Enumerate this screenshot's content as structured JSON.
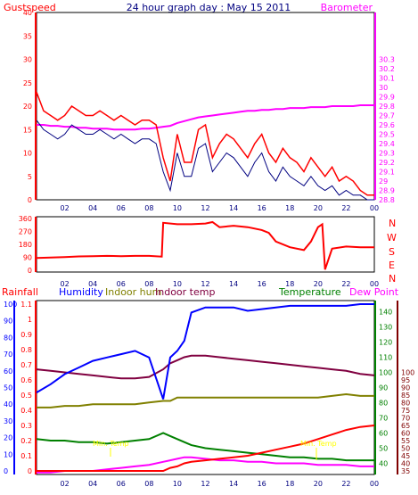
{
  "header": {
    "title": "24 hour graph day : May 15 2011",
    "left_label": "Gustspeed",
    "right_label": "Barometer"
  },
  "colors": {
    "gust": "#ff0000",
    "wind": "#000080",
    "barometer": "#ff00ff",
    "direction": "#ff0000",
    "rain": "#ff0000",
    "humidity": "#0000ff",
    "indoor_hum": "#808000",
    "indoor_temp": "#800040",
    "temperature": "#008000",
    "dewpoint": "#ff00ff",
    "axis_left": "#ff0000",
    "axis_right": "#ff00ff",
    "hum_axis": "#0000ff",
    "temp_axis": "#008000",
    "rain_axis": "#800000"
  },
  "x_ticks": [
    "02",
    "04",
    "06",
    "08",
    "10",
    "12",
    "14",
    "16",
    "18",
    "20",
    "22",
    "00"
  ],
  "chart_data": [
    {
      "type": "line",
      "name_hint": "wind",
      "title": "24 hour graph day : May 15 2011",
      "ylabel": "Gustspeed",
      "y2label": "Barometer",
      "ylim": [
        0,
        40
      ],
      "y2lim": [
        28.8,
        30.8
      ],
      "yticks": [
        0,
        5,
        10,
        15,
        20,
        25,
        30,
        35,
        40
      ],
      "y2ticks": [
        "28.8",
        "28.9",
        "29",
        "29.1",
        "29.2",
        "29.3",
        "29.4",
        "29.5",
        "29.6",
        "29.7",
        "29.8",
        "29.9",
        "30",
        "30.1",
        "30.2",
        "30.3"
      ],
      "x": [
        0,
        0.5,
        1,
        1.5,
        2,
        2.5,
        3,
        3.5,
        4,
        4.5,
        5,
        5.5,
        6,
        6.5,
        7,
        7.5,
        8,
        8.5,
        9,
        9.5,
        10,
        10.5,
        11,
        11.5,
        12,
        12.5,
        13,
        13.5,
        14,
        14.5,
        15,
        15.5,
        16,
        16.5,
        17,
        17.5,
        18,
        18.5,
        19,
        19.5,
        20,
        20.5,
        21,
        21.5,
        22,
        22.5,
        23,
        23.5,
        24
      ],
      "series": [
        {
          "name": "Gustspeed",
          "values": [
            23,
            19,
            18,
            17,
            18,
            20,
            19,
            18,
            18,
            19,
            18,
            17,
            18,
            17,
            16,
            17,
            17,
            16,
            9,
            4,
            14,
            8,
            8,
            15,
            16,
            9,
            12,
            14,
            13,
            11,
            9,
            12,
            14,
            10,
            8,
            11,
            9,
            8,
            6,
            9,
            7,
            5,
            7,
            4,
            5,
            4,
            2,
            1,
            1
          ]
        },
        {
          "name": "Wind",
          "values": [
            17,
            15,
            14,
            13,
            14,
            16,
            15,
            14,
            14,
            15,
            14,
            13,
            14,
            13,
            12,
            13,
            13,
            12,
            6,
            2,
            10,
            5,
            5,
            11,
            12,
            6,
            8,
            10,
            9,
            7,
            5,
            8,
            10,
            6,
            4,
            7,
            5,
            4,
            3,
            5,
            3,
            2,
            3,
            1,
            2,
            1,
            1,
            0,
            0
          ]
        },
        {
          "name": "Barometer",
          "values": [
            29.6,
            29.6,
            29.59,
            29.59,
            29.58,
            29.58,
            29.57,
            29.57,
            29.56,
            29.56,
            29.56,
            29.55,
            29.55,
            29.55,
            29.55,
            29.56,
            29.56,
            29.57,
            29.58,
            29.59,
            29.62,
            29.64,
            29.66,
            29.68,
            29.69,
            29.7,
            29.71,
            29.72,
            29.73,
            29.74,
            29.75,
            29.75,
            29.76,
            29.76,
            29.77,
            29.77,
            29.78,
            29.78,
            29.78,
            29.79,
            29.79,
            29.79,
            29.8,
            29.8,
            29.8,
            29.8,
            29.81,
            29.81,
            29.81
          ]
        }
      ]
    },
    {
      "type": "line",
      "name_hint": "direction",
      "yticks": [
        0,
        90,
        180,
        270,
        360
      ],
      "ylim": [
        0,
        360
      ],
      "compass": [
        "N",
        "W",
        "S",
        "E",
        "N"
      ],
      "x": [
        0,
        1,
        2,
        3,
        4,
        5,
        6,
        7,
        8,
        8.9,
        9.0,
        10,
        11,
        12,
        12.5,
        13,
        14,
        15,
        16,
        16.5,
        17,
        18,
        19,
        19.5,
        20,
        20.3,
        20.5,
        21,
        22,
        23,
        24
      ],
      "values": [
        85,
        88,
        92,
        96,
        98,
        100,
        98,
        100,
        100,
        95,
        330,
        320,
        320,
        325,
        335,
        300,
        310,
        300,
        280,
        260,
        200,
        160,
        140,
        200,
        300,
        320,
        5,
        150,
        165,
        160,
        160
      ]
    },
    {
      "type": "line",
      "name_hint": "temp",
      "labels": [
        "Rainfall",
        "Humidity",
        "Indoor hum",
        "Indoor temp",
        "Temperature",
        "Dew Point"
      ],
      "rain_ticks": [
        "0",
        "0.1",
        "0.2",
        "0.3",
        "0.4",
        "0.5",
        "0.6",
        "0.7",
        "0.8",
        "0.9",
        "1",
        "1.1"
      ],
      "hum_ticks": [
        0,
        10,
        20,
        30,
        40,
        50,
        60,
        70,
        80,
        90,
        100
      ],
      "temp_ticks": [
        40,
        50,
        60,
        70,
        80,
        90,
        100,
        110,
        120,
        130,
        140
      ],
      "temp2_ticks": [
        35,
        40,
        45,
        50,
        55,
        60,
        65,
        70,
        75,
        80,
        85,
        90,
        95,
        100
      ],
      "annotations": [
        "Min. Temp",
        "Min. Temp"
      ],
      "x": [
        0,
        1,
        2,
        3,
        4,
        5,
        6,
        7,
        8,
        9,
        9.5,
        10,
        10.5,
        11,
        12,
        13,
        14,
        15,
        16,
        17,
        18,
        19,
        20,
        21,
        22,
        23,
        24
      ],
      "series": [
        {
          "name": "Humidity",
          "values": [
            47,
            52,
            58,
            62,
            66,
            68,
            70,
            72,
            68,
            43,
            68,
            72,
            78,
            95,
            98,
            98,
            98,
            96,
            97,
            98,
            99,
            99,
            99,
            99,
            99,
            100,
            100
          ]
        },
        {
          "name": "Indoor hum",
          "values": [
            38,
            38,
            39,
            39,
            40,
            40,
            40,
            40,
            41,
            42,
            42,
            44,
            44,
            44,
            44,
            44,
            44,
            44,
            44,
            44,
            44,
            44,
            44,
            45,
            46,
            45,
            45
          ]
        },
        {
          "name": "Indoor temp",
          "values": [
            102,
            101,
            100,
            99,
            98,
            97,
            96,
            96,
            97,
            102,
            106,
            108,
            110,
            111,
            111,
            110,
            109,
            108,
            107,
            106,
            105,
            104,
            103,
            102,
            101,
            99,
            98
          ]
        },
        {
          "name": "Temperature",
          "values": [
            56,
            55,
            55,
            54,
            54,
            53,
            54,
            55,
            56,
            60,
            58,
            56,
            54,
            52,
            50,
            49,
            48,
            47,
            46,
            45,
            44,
            44,
            43,
            43,
            42,
            42,
            42
          ]
        },
        {
          "name": "Dew Point",
          "values": [
            34,
            34,
            35,
            35,
            35,
            36,
            37,
            38,
            39,
            41,
            42,
            43,
            44,
            44,
            43,
            42,
            42,
            41,
            41,
            40,
            40,
            40,
            39,
            39,
            39,
            38,
            38
          ]
        },
        {
          "name": "Rainfall",
          "values": [
            0,
            0,
            0,
            0,
            0,
            0,
            0,
            0,
            0,
            0,
            0.02,
            0.03,
            0.05,
            0.06,
            0.07,
            0.08,
            0.09,
            0.1,
            0.12,
            0.14,
            0.16,
            0.18,
            0.21,
            0.24,
            0.27,
            0.29,
            0.3
          ]
        }
      ]
    }
  ]
}
